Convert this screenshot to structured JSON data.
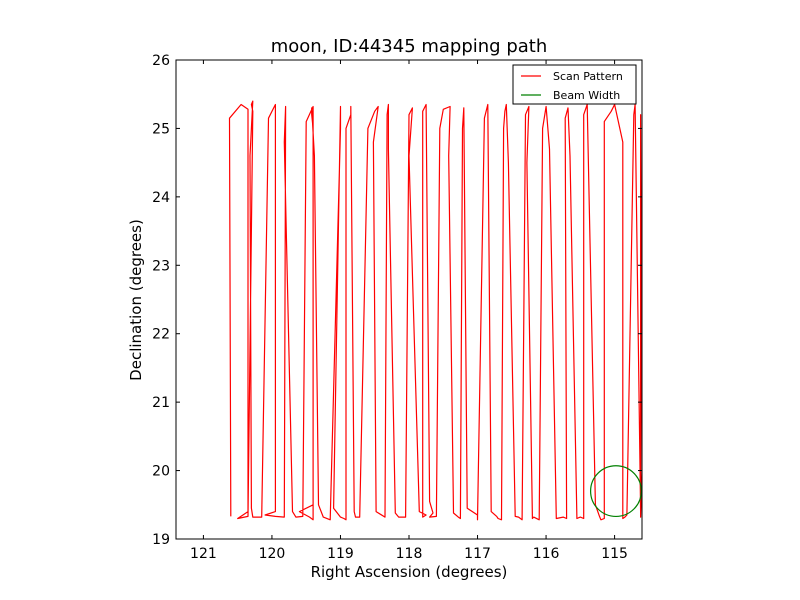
{
  "chart_data": {
    "type": "line",
    "title": "moon, ID:44345 mapping path",
    "xlabel": "Right Ascension (degrees)",
    "ylabel": "Declination (degrees)",
    "xlim": [
      121.4,
      114.6
    ],
    "ylim": [
      19,
      26
    ],
    "x_ticks": [
      121,
      120,
      119,
      118,
      117,
      116,
      115
    ],
    "y_ticks": [
      19,
      20,
      21,
      22,
      23,
      24,
      25,
      26
    ],
    "grid": false,
    "legend_position": "top-right",
    "series": [
      {
        "name": "Scan Pattern",
        "color": "#ff0000",
        "x": [
          120.6,
          120.62,
          120.45,
          120.35,
          120.35,
          120.5,
          120.35,
          120.28,
          120.3,
          120.28,
          120.32,
          120.3,
          120.28,
          120.15,
          120.05,
          119.95,
          119.95,
          120.1,
          119.95,
          119.82,
          119.8,
          119.8,
          119.82,
          119.7,
          119.65,
          119.55,
          119.5,
          119.4,
          119.4,
          119.6,
          119.45,
          119.4,
          119.4,
          119.42,
          119.42,
          119.38,
          119.32,
          119.25,
          119.15,
          119.0,
          119.0,
          119.1,
          119.0,
          118.95,
          118.92,
          118.92,
          118.85,
          118.85,
          118.8,
          118.78,
          118.72,
          118.6,
          118.5,
          118.45,
          118.52,
          118.48,
          118.35,
          118.35,
          118.32,
          118.3,
          118.3,
          118.2,
          118.15,
          118.05,
          118.0,
          117.95,
          118.0,
          117.85,
          117.75,
          117.8,
          117.8,
          117.75,
          117.7,
          117.65,
          117.7,
          117.6,
          117.55,
          117.5,
          117.4,
          117.42,
          117.35,
          117.28,
          117.25,
          117.22,
          117.2,
          117.15,
          117.0,
          117.0,
          117.0,
          116.9,
          116.85,
          116.8,
          116.72,
          116.7,
          116.65,
          116.62,
          116.6,
          116.58,
          116.55,
          116.45,
          116.4,
          116.35,
          116.3,
          116.25,
          116.28,
          116.2,
          116.18,
          116.1,
          116.05,
          116.0,
          115.95,
          115.85,
          115.75,
          115.7,
          115.72,
          115.68,
          115.65,
          115.55,
          115.5,
          115.45,
          115.45,
          115.4,
          115.28,
          115.22,
          115.2,
          115.15,
          115.15,
          115.05,
          115.0,
          114.88,
          114.88,
          114.85,
          114.82,
          114.72,
          114.7,
          114.62,
          114.62,
          114.62,
          114.6,
          114.62
        ],
        "y": [
          19.33,
          25.15,
          25.35,
          25.28,
          19.4,
          19.3,
          19.33,
          25.25,
          25.35,
          25.4,
          24.6,
          19.45,
          19.32,
          19.32,
          25.15,
          25.35,
          19.4,
          19.35,
          19.33,
          19.32,
          25.2,
          25.32,
          24.8,
          19.4,
          19.32,
          19.33,
          25.1,
          25.32,
          19.5,
          19.4,
          19.32,
          19.28,
          25.0,
          25.2,
          25.3,
          24.6,
          19.5,
          19.32,
          19.28,
          25.0,
          25.32,
          19.45,
          19.32,
          19.3,
          19.28,
          25.0,
          25.2,
          25.32,
          19.4,
          19.32,
          19.32,
          25.0,
          25.25,
          25.32,
          24.8,
          19.4,
          19.32,
          19.32,
          25.2,
          25.35,
          24.7,
          19.38,
          19.32,
          19.32,
          25.2,
          25.3,
          24.6,
          19.4,
          19.35,
          19.32,
          25.25,
          25.35,
          19.55,
          19.38,
          19.32,
          19.33,
          25.0,
          25.28,
          25.32,
          24.6,
          19.38,
          19.32,
          19.3,
          25.0,
          25.3,
          19.45,
          19.35,
          19.32,
          19.28,
          25.15,
          25.35,
          19.4,
          19.33,
          19.3,
          19.28,
          25.0,
          25.25,
          25.35,
          24.5,
          19.33,
          19.32,
          19.28,
          25.2,
          25.32,
          24.5,
          19.3,
          19.32,
          19.28,
          25.0,
          25.32,
          24.7,
          19.3,
          19.32,
          19.3,
          25.15,
          25.3,
          24.6,
          19.3,
          19.32,
          19.3,
          25.2,
          25.35,
          19.5,
          19.33,
          19.28,
          19.3,
          25.1,
          25.25,
          25.35,
          24.8,
          19.3,
          19.32,
          19.35,
          25.2,
          25.35,
          19.4,
          19.32,
          25.2,
          20.0,
          19.32
        ]
      },
      {
        "name": "Beam Width",
        "color": "#008000",
        "center": [
          114.98,
          19.7
        ],
        "radius_deg": 0.37
      }
    ]
  }
}
